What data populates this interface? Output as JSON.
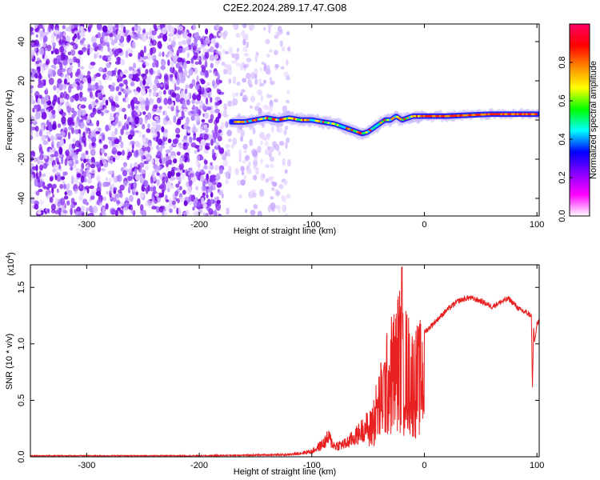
{
  "title": "C2E2.2024.289.17.47.G08",
  "chart_data": [
    {
      "type": "heatmap",
      "xlabel": "Height of straight line (km)",
      "ylabel": "Frequency (Hz)",
      "xlim": [
        -350,
        102
      ],
      "ylim": [
        -49,
        49
      ],
      "x_ticks": [
        -300,
        -200,
        -100,
        0,
        100
      ],
      "y_ticks": [
        -40,
        -20,
        0,
        20,
        40
      ],
      "colorbar": {
        "label": "Normalized spectral amplitude",
        "range": [
          0,
          1
        ],
        "ticks": [
          "0.0",
          "0.2",
          "0.4",
          "0.6",
          "0.8"
        ],
        "colors": [
          "#ffffff",
          "#ff00ff",
          "#8800ff",
          "#0000ff",
          "#00ffff",
          "#00ff00",
          "#ffff00",
          "#ff8800",
          "#ff0000",
          "#ff0066"
        ]
      },
      "noise_region_x": [
        -350,
        -180
      ],
      "ridge": {
        "x": [
          -170,
          -160,
          -150,
          -140,
          -130,
          -120,
          -110,
          -100,
          -90,
          -80,
          -70,
          -60,
          -55,
          -50,
          -45,
          -40,
          -35,
          -30,
          -25,
          -20,
          -15,
          -10,
          -5,
          0,
          20,
          40,
          60,
          80,
          100
        ],
        "y": [
          -1,
          -1,
          0,
          1,
          0,
          1,
          0,
          0,
          -1,
          -2,
          -4,
          -6,
          -7,
          -6,
          -4,
          -2,
          0,
          0,
          2,
          0,
          1,
          2,
          2,
          2,
          2,
          2.5,
          3,
          3,
          3
        ]
      }
    },
    {
      "type": "line",
      "xlabel": "Height of straight line (km)",
      "ylabel": "SNR (10 * v/v)",
      "y_multiplier": "(x10",
      "y_multiplier_exp": "4",
      "y_multiplier_close": ")",
      "xlim": [
        -350,
        102
      ],
      "ylim": [
        0,
        1.7
      ],
      "x_ticks": [
        -300,
        -200,
        -100,
        0,
        100
      ],
      "y_ticks": [
        "0.0",
        "0.5",
        "1.0",
        "1.5"
      ],
      "line_color": "#e82020",
      "envelope": {
        "x": [
          -350,
          -200,
          -120,
          -100,
          -90,
          -85,
          -80,
          -70,
          -60,
          -50,
          -45,
          -40,
          -35,
          -30,
          -25,
          -22,
          -20,
          -17,
          -15,
          -10,
          -5,
          0,
          10,
          20,
          30,
          40,
          50,
          60,
          70,
          75,
          80,
          85,
          90,
          95,
          96,
          97,
          98,
          100,
          102
        ],
        "y": [
          0.01,
          0.01,
          0.02,
          0.05,
          0.12,
          0.18,
          0.1,
          0.12,
          0.2,
          0.3,
          0.5,
          0.7,
          0.9,
          1.1,
          1.2,
          1.4,
          1.1,
          1.2,
          1.15,
          1.0,
          1.05,
          1.1,
          1.2,
          1.3,
          1.38,
          1.41,
          1.38,
          1.33,
          1.38,
          1.4,
          1.35,
          1.3,
          1.28,
          1.25,
          0.6,
          1.15,
          1.0,
          1.18,
          1.2
        ]
      },
      "spike": {
        "x": -20,
        "y": 1.68
      }
    }
  ]
}
